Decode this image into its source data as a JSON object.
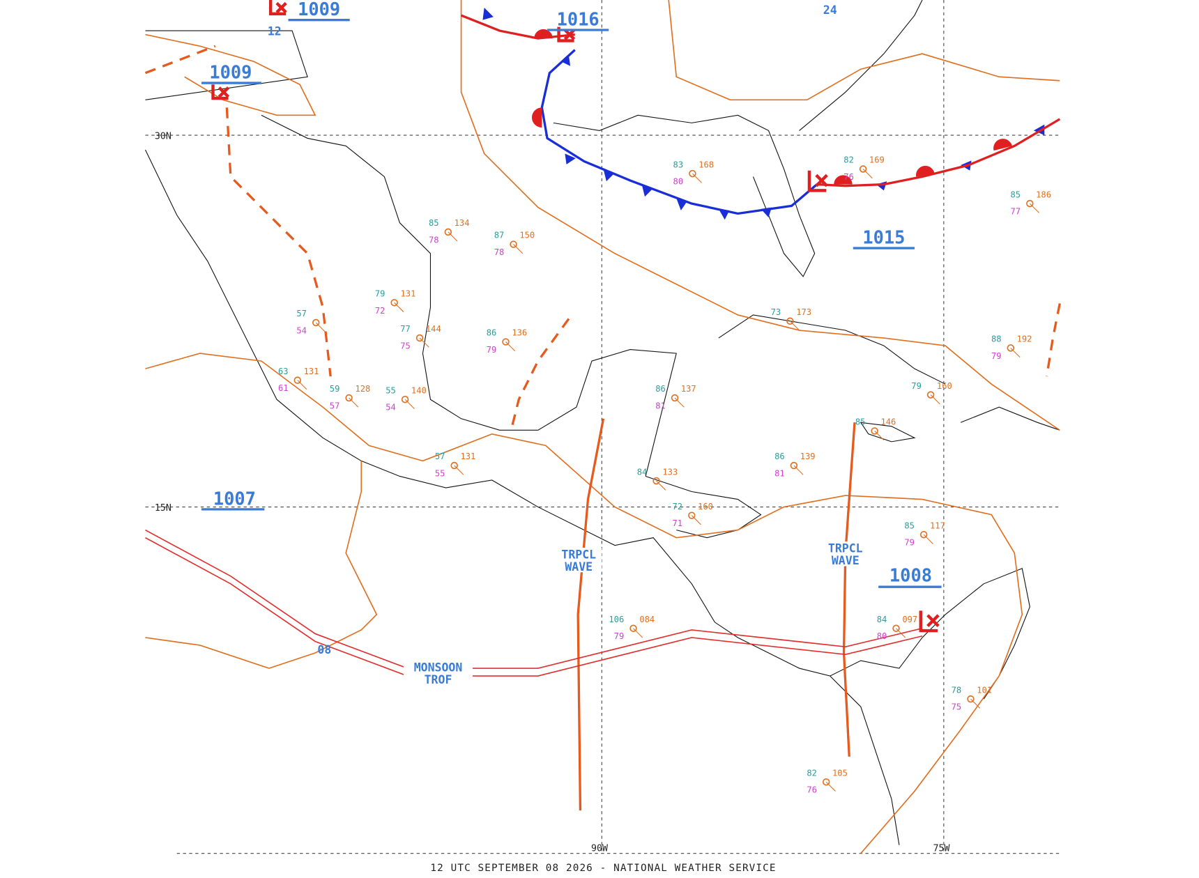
{
  "pressure_centers": [
    "1009",
    "1009",
    "1016",
    "1007",
    "1015",
    "1008"
  ],
  "small_labels": [
    "12",
    "24",
    "08"
  ],
  "grid_labels": [
    "30N",
    "15N",
    "90W",
    "75W"
  ],
  "features": {
    "tropical_waves": [
      [
        "TRPCL",
        "WAVE"
      ],
      [
        "TRPCL",
        "WAVE"
      ]
    ],
    "monsoon_trough": [
      "MONSOON",
      "TROF"
    ]
  },
  "stations": [
    {
      "temp": "77",
      "pres": "144",
      "dew": "75"
    },
    {
      "temp": "79",
      "pres": "131",
      "dew": "72"
    },
    {
      "temp": "86",
      "pres": "136",
      "dew": "79"
    },
    {
      "temp": "55",
      "pres": "140",
      "dew": "54"
    },
    {
      "temp": "59",
      "pres": "128",
      "dew": "57"
    },
    {
      "temp": "63",
      "pres": "131",
      "dew": "61"
    },
    {
      "temp": "57",
      "dew": "54"
    },
    {
      "temp": "87",
      "pres": "150",
      "dew": "78"
    },
    {
      "temp": "86",
      "pres": "139",
      "dew": "81"
    },
    {
      "temp": "85",
      "pres": "117",
      "dew": "79"
    },
    {
      "temp": "85",
      "pres": "146"
    },
    {
      "temp": "79",
      "pres": "160"
    },
    {
      "temp": "88",
      "pres": "192",
      "dew": "79"
    },
    {
      "temp": "57",
      "pres": "131",
      "dew": "55"
    },
    {
      "temp": "84",
      "pres": "133"
    },
    {
      "temp": "72",
      "pres": "160",
      "dew": "71"
    },
    {
      "temp": "82",
      "pres": "105",
      "dew": "76"
    },
    {
      "temp": "106",
      "pres": "084",
      "dew": "79"
    },
    {
      "temp": "84",
      "pres": "097",
      "dew": "80"
    },
    {
      "temp": "78",
      "pres": "101",
      "dew": "75"
    },
    {
      "temp": "86",
      "pres": "137",
      "dew": "81"
    },
    {
      "temp": "73",
      "pres": "173"
    },
    {
      "temp": "85",
      "pres": "134",
      "dew": "78"
    },
    {
      "temp": "83",
      "pres": "168",
      "dew": "80"
    },
    {
      "temp": "82",
      "pres": "169",
      "dew": "76"
    },
    {
      "temp": "85",
      "pres": "186",
      "dew": "77"
    }
  ],
  "footer": "12 UTC SEPTEMBER 08 2026 - NATIONAL WEATHER SERVICE"
}
